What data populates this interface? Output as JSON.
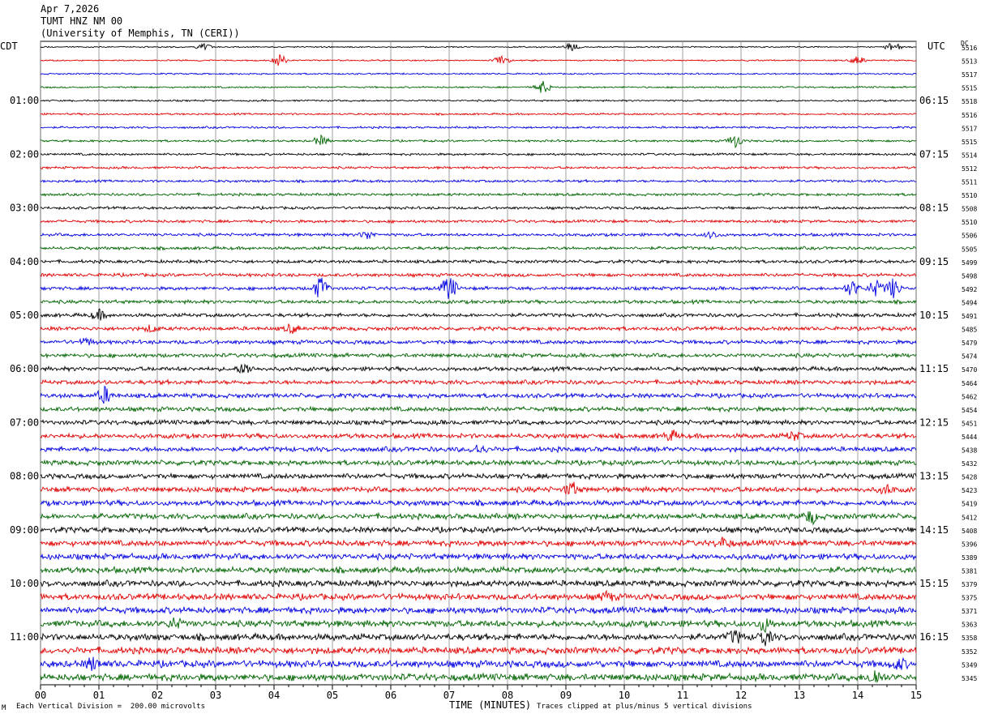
{
  "header": {
    "date": "Apr 7,2026",
    "station": "TUMT HNZ NM 00",
    "institution": "(University of Memphis, TN (CERI))"
  },
  "chart_data": {
    "type": "line",
    "title": "Apr 7,2026",
    "left_timezone": "CDT",
    "right_timezone": "UTC",
    "dc_label": "DC",
    "xlabel": "TIME (MINUTES)",
    "x_ticks": [
      "00",
      "01",
      "02",
      "03",
      "04",
      "05",
      "06",
      "07",
      "08",
      "09",
      "10",
      "11",
      "12",
      "13",
      "14",
      "15"
    ],
    "xlim": [
      0,
      15
    ],
    "grid": true,
    "trace_colors": [
      "#000000",
      "#e00000",
      "#0000e0",
      "#006400"
    ],
    "left_hour_labels": [
      "01:00",
      "02:00",
      "03:00",
      "04:00",
      "05:00",
      "06:00",
      "07:00",
      "08:00",
      "09:00",
      "10:00",
      "11:00"
    ],
    "right_hour_labels": [
      "06:15",
      "07:15",
      "08:15",
      "09:15",
      "10:15",
      "11:15",
      "12:15",
      "13:15",
      "14:15",
      "15:15",
      "16:15"
    ],
    "dc_offsets": [
      "5516",
      "5513",
      "5517",
      "5515",
      "5518",
      "5516",
      "5517",
      "5515",
      "5514",
      "5512",
      "5511",
      "5510",
      "5508",
      "5510",
      "5506",
      "5505",
      "5499",
      "5498",
      "5492",
      "5494",
      "5491",
      "5485",
      "5479",
      "5474",
      "5470",
      "5464",
      "5462",
      "5454",
      "5451",
      "5444",
      "5438",
      "5432",
      "5428",
      "5423",
      "5419",
      "5412",
      "5408",
      "5396",
      "5389",
      "5381",
      "5379",
      "5375",
      "5371",
      "5363",
      "5358",
      "5352",
      "5349",
      "5345"
    ],
    "scale_note": "Each Vertical Division =  200.00 microvolts",
    "clip_note": "Traces clipped at plus/minus 5 vertical divisions",
    "footer_mark": "M"
  }
}
